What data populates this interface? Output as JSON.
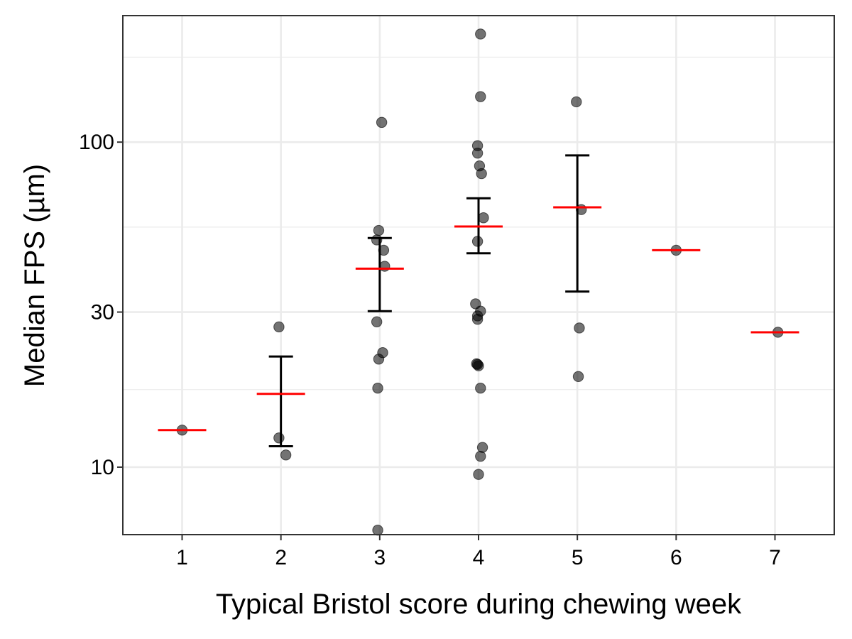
{
  "chart_data": {
    "type": "scatter",
    "title": "",
    "xlabel": "Typical Bristol score during chewing week",
    "ylabel": "Median FPS (µm)",
    "x_ticks": [
      1,
      2,
      3,
      4,
      5,
      6,
      7
    ],
    "y_scale": "log10",
    "y_ticks": [
      10,
      30,
      100
    ],
    "xlim": [
      0.4,
      7.6
    ],
    "ylim": [
      6.2,
      245
    ],
    "grid": true,
    "legend": "none",
    "colors": {
      "points": "#000000",
      "mean_line": "#ff0000",
      "error_bar": "#000000",
      "grid": "#ebebeb",
      "panel_border": "#333333"
    },
    "points": [
      {
        "x": 1.0,
        "y": 13.0
      },
      {
        "x": 1.98,
        "y": 27.0
      },
      {
        "x": 1.98,
        "y": 12.3
      },
      {
        "x": 2.05,
        "y": 10.9
      },
      {
        "x": 3.02,
        "y": 115
      },
      {
        "x": 2.99,
        "y": 53.5
      },
      {
        "x": 2.97,
        "y": 50.0
      },
      {
        "x": 3.04,
        "y": 46.5
      },
      {
        "x": 3.05,
        "y": 41.5
      },
      {
        "x": 2.97,
        "y": 28.0
      },
      {
        "x": 3.03,
        "y": 22.5
      },
      {
        "x": 2.99,
        "y": 21.5
      },
      {
        "x": 2.98,
        "y": 17.5
      },
      {
        "x": 2.98,
        "y": 6.4
      },
      {
        "x": 4.02,
        "y": 215
      },
      {
        "x": 4.02,
        "y": 138
      },
      {
        "x": 3.99,
        "y": 97.5
      },
      {
        "x": 3.99,
        "y": 92.5
      },
      {
        "x": 4.01,
        "y": 84.5
      },
      {
        "x": 4.03,
        "y": 80.0
      },
      {
        "x": 4.05,
        "y": 58.5
      },
      {
        "x": 3.99,
        "y": 49.5
      },
      {
        "x": 3.97,
        "y": 31.8
      },
      {
        "x": 4.02,
        "y": 30.2
      },
      {
        "x": 3.99,
        "y": 29.2
      },
      {
        "x": 3.99,
        "y": 28.5
      },
      {
        "x": 3.98,
        "y": 20.8
      },
      {
        "x": 3.99,
        "y": 20.7
      },
      {
        "x": 4.0,
        "y": 20.5
      },
      {
        "x": 4.02,
        "y": 17.5
      },
      {
        "x": 4.04,
        "y": 11.5
      },
      {
        "x": 4.02,
        "y": 10.8
      },
      {
        "x": 4.0,
        "y": 9.5
      },
      {
        "x": 4.99,
        "y": 133
      },
      {
        "x": 5.04,
        "y": 62.0
      },
      {
        "x": 5.02,
        "y": 26.8
      },
      {
        "x": 5.01,
        "y": 19.0
      },
      {
        "x": 6.0,
        "y": 46.5
      },
      {
        "x": 7.03,
        "y": 26.0
      }
    ],
    "mean": [
      {
        "x": 1,
        "y": 13.0
      },
      {
        "x": 2,
        "y": 16.8
      },
      {
        "x": 3,
        "y": 40.8
      },
      {
        "x": 4,
        "y": 55.0
      },
      {
        "x": 5,
        "y": 63.0
      },
      {
        "x": 6,
        "y": 46.5
      },
      {
        "x": 7,
        "y": 26.0
      }
    ],
    "error_bars": [
      {
        "x": 2,
        "low": 11.6,
        "high": 21.9
      },
      {
        "x": 3,
        "low": 30.2,
        "high": 50.7
      },
      {
        "x": 4,
        "low": 45.5,
        "high": 67.2
      },
      {
        "x": 5,
        "low": 34.7,
        "high": 91.0
      }
    ]
  }
}
